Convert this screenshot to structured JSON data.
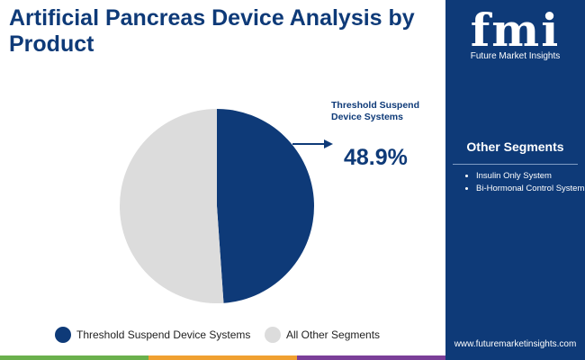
{
  "header": {
    "logo_text": "fmi",
    "brand": "Future Market Insights"
  },
  "chart_data": {
    "type": "pie",
    "title": "Artificial Pancreas Device Analysis by Product",
    "categories": [
      "Threshold Suspend Device Systems",
      "All Other Segments"
    ],
    "values": [
      48.9,
      51.1
    ],
    "value_labels": [
      "48.9%",
      null
    ],
    "colors": [
      "#0e3a78",
      "#dcdcdc"
    ]
  },
  "sidebar": {
    "heading": "Other Segments",
    "items": [
      "Insulin Only System",
      "Bi-Hormonal Control System"
    ]
  },
  "footer": {
    "website": "www.futuremarketinsights.com"
  }
}
